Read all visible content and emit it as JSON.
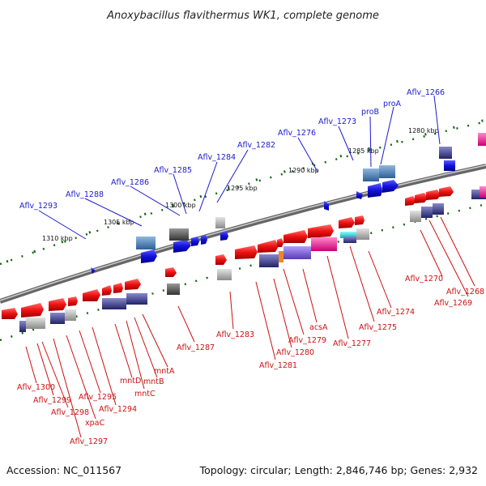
{
  "title": "Anoxybacillus flavithermus WK1, complete genome",
  "footer": {
    "accession": "Accession: NC_011567",
    "topology": "Topology: circular; Length: 2,846,746 bp; Genes: 2,932"
  },
  "kbp_ticks": [
    "1280 kbp",
    "1285 kbp",
    "1290 kbp",
    "1295 kbp",
    "1300 kbp",
    "1305 kbp",
    "1310 kbp"
  ],
  "colors": {
    "forward_gene": "#ee1111",
    "reverse_gene": "#ee1111",
    "cds_blue": "#1111dd",
    "steelblue": "#4a7fb5",
    "navy": "#333388",
    "purple": "#7755cc",
    "magenta": "#ee2299",
    "cyan": "#22dddd",
    "gray": "#999999",
    "backbone": "#888888",
    "tick_green": "#116611",
    "label_top": "#1a1ad0",
    "label_bottom": "#cc1010"
  },
  "top_labels": [
    "Aflv_1266",
    "proA",
    "proB",
    "Aflv_1273",
    "Aflv_1276",
    "Aflv_1282",
    "Aflv_1284",
    "Aflv_1285",
    "Aflv_1286",
    "Aflv_1288",
    "Aflv_1293"
  ],
  "bottom_labels": [
    "Aflv_1268",
    "Aflv_1269",
    "Aflv_1270",
    "Aflv_1274",
    "Aflv_1275",
    "Aflv_1277",
    "acsA",
    "Aflv_1279",
    "Aflv_1280",
    "Aflv_1281",
    "Aflv_1283",
    "Aflv_1287",
    "mntA",
    "mntB",
    "mntC",
    "mntD",
    "Aflv_1294",
    "Aflv_1295",
    "xpaC",
    "Aflv_1297",
    "Aflv_1298",
    "Aflv_1299",
    "Aflv_1300"
  ]
}
